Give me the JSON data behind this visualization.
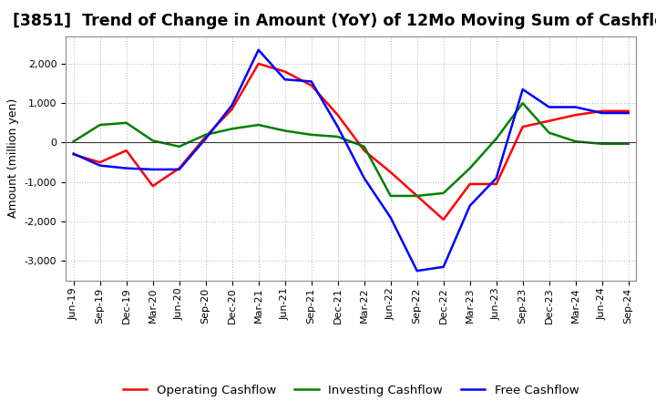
{
  "title": "[3851]  Trend of Change in Amount (YoY) of 12Mo Moving Sum of Cashflows",
  "ylabel": "Amount (million yen)",
  "x_labels": [
    "Jun-19",
    "Sep-19",
    "Dec-19",
    "Mar-20",
    "Jun-20",
    "Sep-20",
    "Dec-20",
    "Mar-21",
    "Jun-21",
    "Sep-21",
    "Dec-21",
    "Mar-22",
    "Jun-22",
    "Sep-22",
    "Dec-22",
    "Mar-23",
    "Jun-23",
    "Sep-23",
    "Dec-23",
    "Mar-24",
    "Jun-24",
    "Sep-24"
  ],
  "operating_cashflow": [
    -300,
    -500,
    -200,
    -1100,
    -650,
    150,
    850,
    2000,
    1800,
    1450,
    700,
    -200,
    -750,
    -1350,
    -1950,
    -1050,
    -1050,
    400,
    550,
    700,
    800,
    800
  ],
  "investing_cashflow": [
    30,
    450,
    500,
    50,
    -100,
    200,
    350,
    450,
    300,
    200,
    150,
    -100,
    -1350,
    -1350,
    -1280,
    -650,
    100,
    1000,
    250,
    30,
    -30,
    -30
  ],
  "free_cashflow": [
    -280,
    -580,
    -650,
    -680,
    -680,
    100,
    950,
    2350,
    1600,
    1550,
    400,
    -900,
    -1900,
    -3250,
    -3150,
    -1600,
    -900,
    1350,
    900,
    900,
    750,
    750
  ],
  "operating_color": "#ff0000",
  "investing_color": "#008000",
  "free_color": "#0000ff",
  "background_color": "#ffffff",
  "plot_bg_color": "#ffffff",
  "grid_color": "#b0b0b0",
  "ylim": [
    -3500,
    2700
  ],
  "yticks": [
    -3000,
    -2000,
    -1000,
    0,
    1000,
    2000
  ],
  "title_fontsize": 12.5,
  "label_fontsize": 9,
  "tick_fontsize": 8,
  "legend_fontsize": 9.5,
  "linewidth": 1.8
}
